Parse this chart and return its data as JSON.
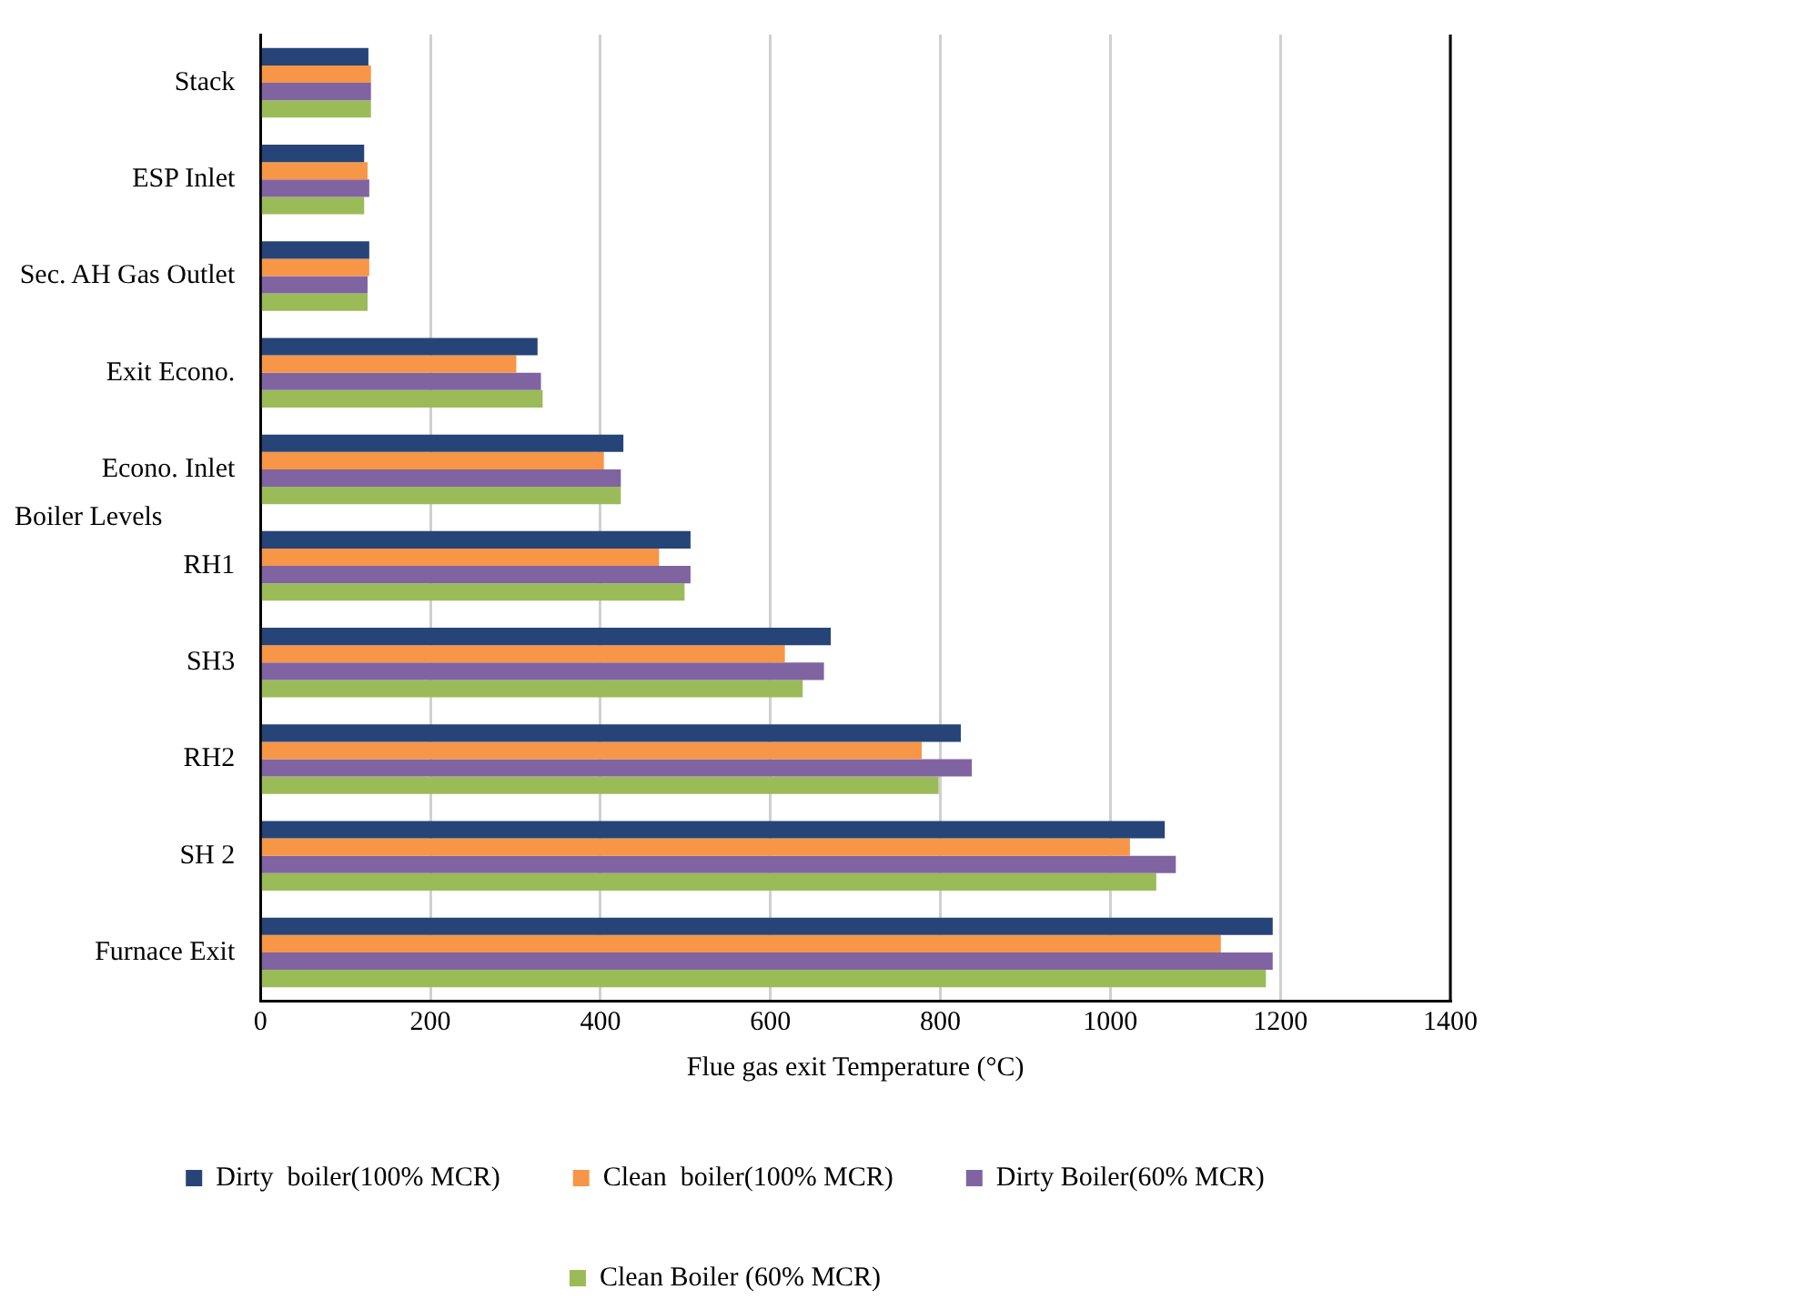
{
  "chart_data": {
    "type": "bar",
    "orientation": "horizontal",
    "xlabel": "Flue gas exit Temperature (°C)",
    "ylabel": "Boiler Levels",
    "categories": [
      "Stack",
      "ESP Inlet",
      "Sec. AH Gas Outlet",
      "Exit Econo.",
      "Econo. Inlet",
      "RH1",
      "SH3",
      "RH2",
      "SH 2",
      "Furnace Exit"
    ],
    "series": [
      {
        "name": "Dirty  boiler(100% MCR)",
        "color": "#264478",
        "values": [
          127,
          122,
          128,
          326,
          427,
          506,
          671,
          824,
          1064,
          1191
        ]
      },
      {
        "name": "Clean  boiler(100% MCR)",
        "color": "#f79646",
        "values": [
          130,
          126,
          128,
          301,
          404,
          469,
          617,
          778,
          1023,
          1130
        ]
      },
      {
        "name": "Dirty Boiler(60% MCR)",
        "color": "#8064a2",
        "values": [
          130,
          128,
          126,
          330,
          424,
          506,
          663,
          837,
          1077,
          1191
        ]
      },
      {
        "name": "Clean Boiler (60% MCR)",
        "color": "#9bbb59",
        "values": [
          130,
          122,
          126,
          332,
          424,
          499,
          638,
          798,
          1054,
          1183
        ]
      }
    ],
    "xlim": [
      0,
      1400
    ],
    "xticks": [
      0,
      200,
      400,
      600,
      800,
      1000,
      1200,
      1400
    ],
    "grid": "x",
    "legend": "bottom"
  }
}
